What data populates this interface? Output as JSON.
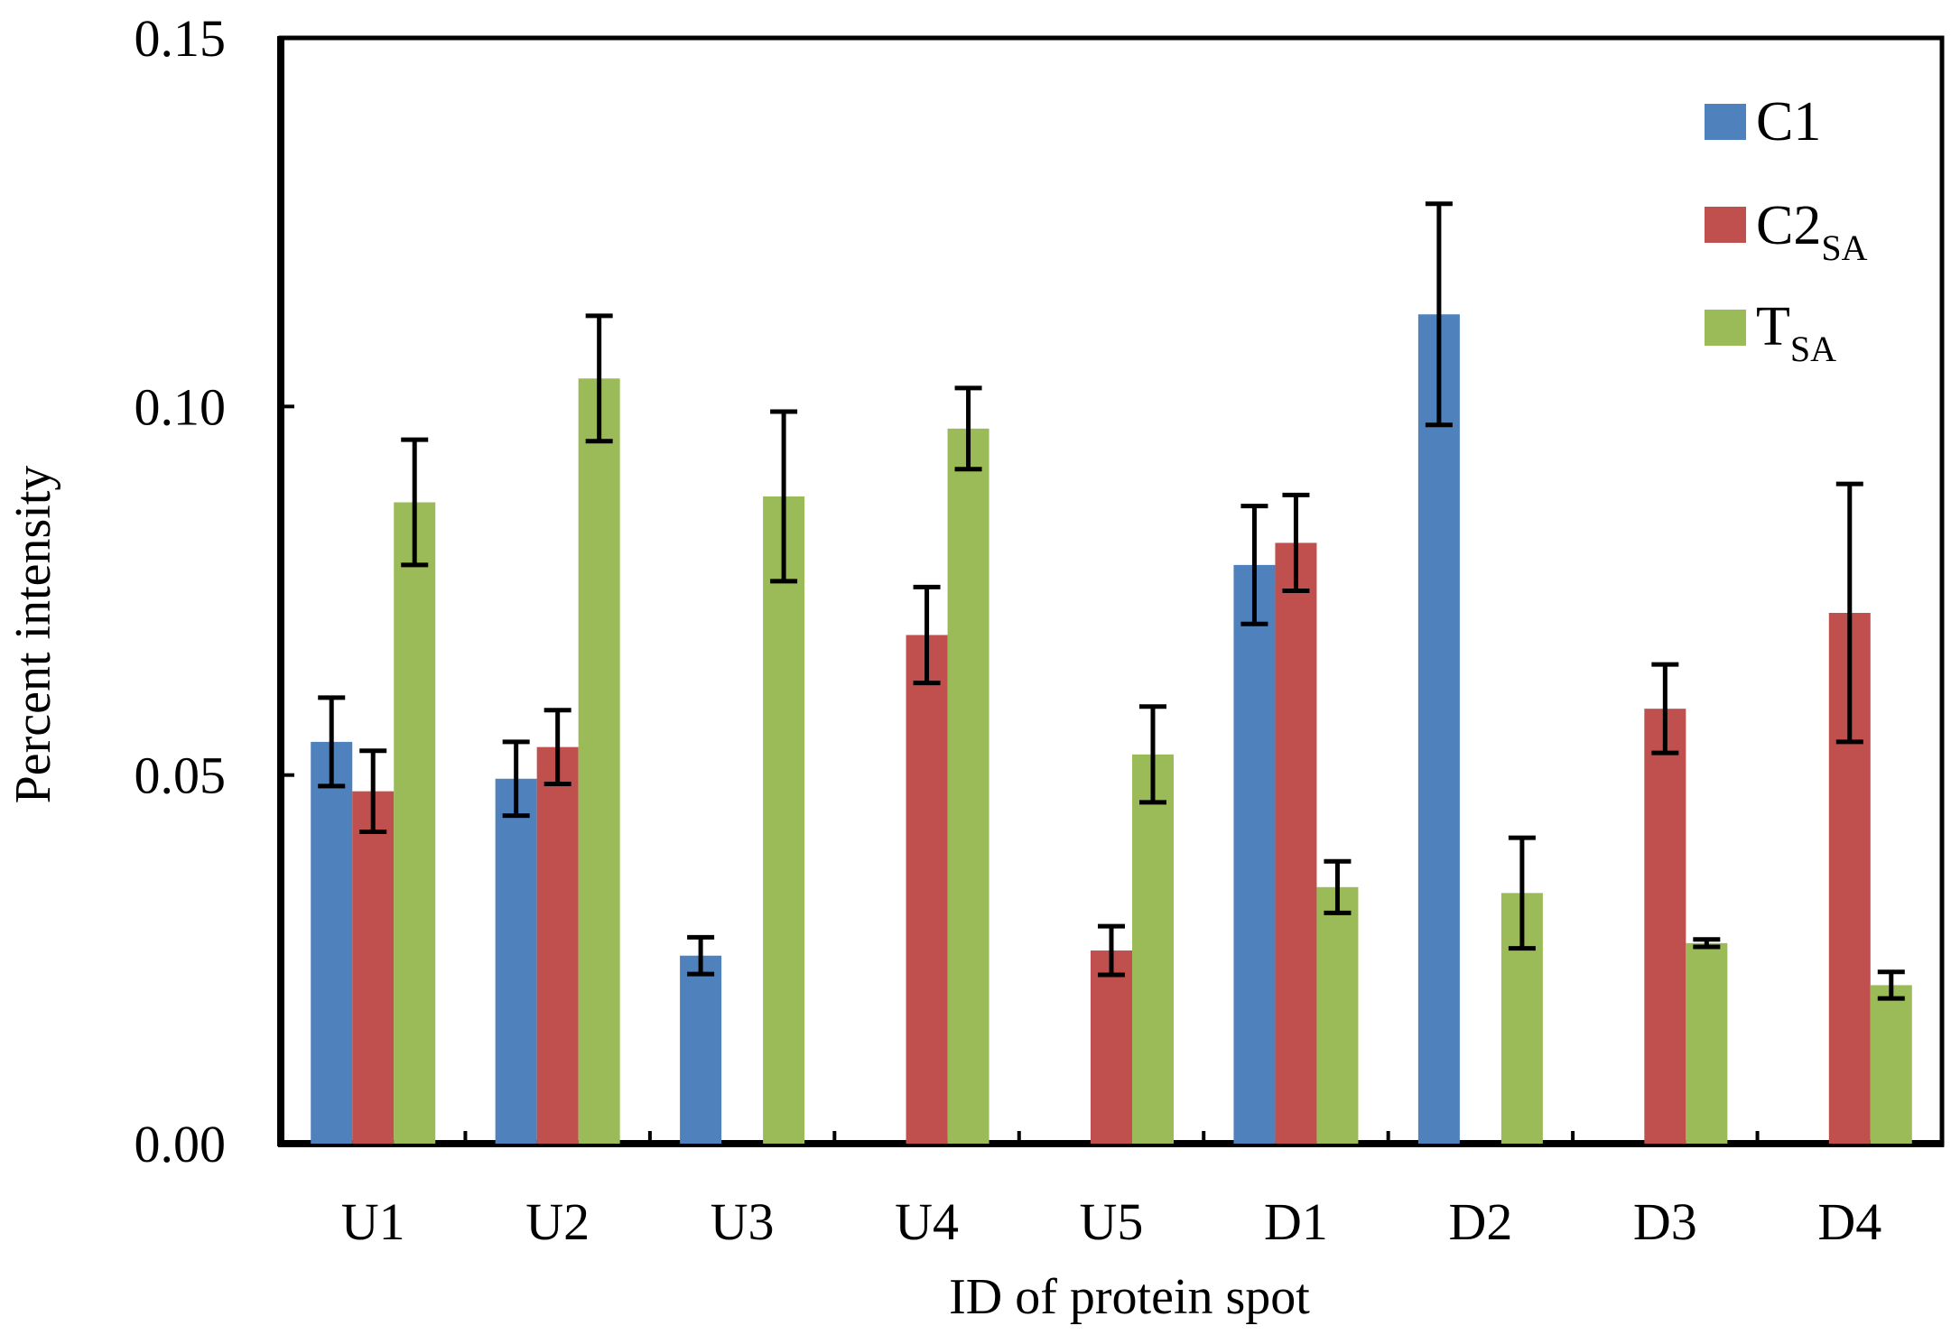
{
  "chart_data": {
    "type": "bar",
    "title": "",
    "xlabel": "ID of protein spot",
    "ylabel": "Percent intensity",
    "ylim": [
      0,
      0.15
    ],
    "yticks": [
      "0.00",
      "0.05",
      "0.10",
      "0.15"
    ],
    "ytick_values": [
      0,
      0.05,
      0.1,
      0.15
    ],
    "categories": [
      "U1",
      "U2",
      "U3",
      "U4",
      "U5",
      "D1",
      "D2",
      "D3",
      "D4"
    ],
    "series": [
      {
        "name": "C1",
        "label_main": "C1",
        "label_sub": "",
        "color": "#4f81bd",
        "values": [
          0.0545,
          0.0495,
          0.0255,
          null,
          null,
          0.0785,
          0.1125,
          null,
          null
        ],
        "errors": [
          0.006,
          0.005,
          0.0025,
          null,
          null,
          0.008,
          0.015,
          null,
          null
        ]
      },
      {
        "name": "C2SA",
        "label_main": "C2",
        "label_sub": "SA",
        "color": "#c0504d",
        "values": [
          0.0478,
          0.0538,
          null,
          0.069,
          0.0262,
          0.0815,
          null,
          0.059,
          0.072
        ],
        "errors": [
          0.0055,
          0.005,
          null,
          0.0065,
          0.0033,
          0.0065,
          null,
          0.006,
          0.0175
        ]
      },
      {
        "name": "TSA",
        "label_main": "T",
        "label_sub": "SA",
        "color": "#9bbb59",
        "values": [
          0.087,
          0.1038,
          0.0878,
          0.097,
          0.0528,
          0.0348,
          0.034,
          0.0272,
          0.0215
        ],
        "errors": [
          0.0085,
          0.0085,
          0.0115,
          0.0055,
          0.0065,
          0.0035,
          0.0075,
          0.0005,
          0.0018
        ]
      }
    ],
    "legend": "top-right",
    "grid": false
  }
}
